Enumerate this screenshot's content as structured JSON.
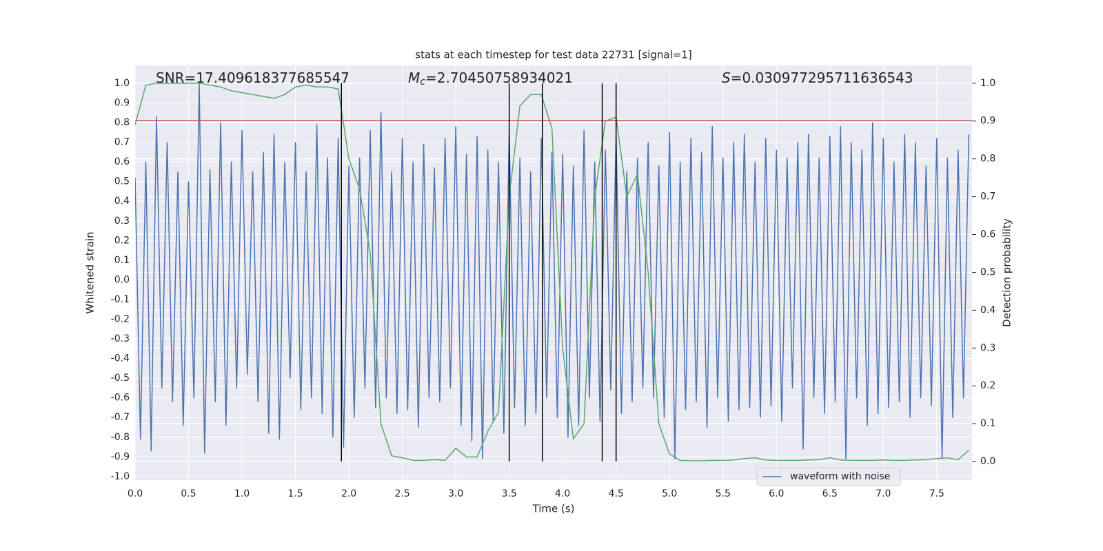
{
  "chart_data": {
    "type": "line",
    "title": "stats at each timestep for test data 22731 [signal=1]",
    "xlabel": "Time (s)",
    "ylabel": "Whitened strain",
    "y2label": "Detection probability",
    "annotations": [
      {
        "text": "SNR=17.409618377685547"
      },
      {
        "italic": "M",
        "sub": "c",
        "text": "=2.70450758934021"
      },
      {
        "italic": "S",
        "text": "=0.030977295711636543"
      }
    ],
    "xlim": [
      0,
      7.83
    ],
    "ylim": [
      -1.018,
      1.091
    ],
    "y2lim": [
      -0.049,
      1.047
    ],
    "xticks": [
      {
        "value": 0,
        "label": "0.0"
      },
      0.5,
      {
        "value": 1,
        "label": "1.0"
      },
      1.5,
      {
        "value": 2,
        "label": "2.0"
      },
      2.5,
      {
        "value": 3,
        "label": "3.0"
      },
      3.5,
      {
        "value": 4,
        "label": "4.0"
      },
      4.5,
      {
        "value": 5,
        "label": "5.0"
      },
      5.5,
      {
        "value": 6,
        "label": "6.0"
      },
      6.5,
      {
        "value": 7,
        "label": "7.0"
      },
      7.5
    ],
    "yticks": [
      {
        "value": -1,
        "label": "-1.0"
      },
      -0.9,
      -0.8,
      -0.7,
      -0.6,
      -0.5,
      -0.4,
      -0.3,
      -0.2,
      -0.1,
      {
        "value": 0,
        "label": "0.0"
      },
      0.1,
      0.2,
      0.3,
      0.4,
      0.5,
      0.6,
      0.7,
      0.8,
      0.9,
      {
        "value": 1,
        "label": "1.0"
      }
    ],
    "y2ticks": [
      {
        "value": 0,
        "label": "0.0"
      },
      0.1,
      0.2,
      0.3,
      0.4,
      0.5,
      0.6,
      0.7,
      0.8,
      0.9,
      {
        "value": 1,
        "label": "1.0"
      }
    ],
    "grid": true,
    "hlines": [
      0.81
    ],
    "hline_color": "#c44e52",
    "vlines": [
      1.93,
      3.5,
      3.81,
      4.37,
      4.5
    ],
    "vline_color": "#000000",
    "legend": "lower right",
    "series": [
      {
        "name": "waveform with noise",
        "color": "#4c72b0",
        "x": [
          0,
          0.05,
          0.1,
          0.15,
          0.2,
          0.25,
          0.3,
          0.35,
          0.4,
          0.45,
          0.5,
          0.55,
          0.6,
          0.65,
          0.7,
          0.75,
          0.8,
          0.85,
          0.9,
          0.95,
          1,
          1.05,
          1.1,
          1.15,
          1.2,
          1.25,
          1.3,
          1.35,
          1.4,
          1.45,
          1.5,
          1.55,
          1.6,
          1.65,
          1.7,
          1.75,
          1.8,
          1.85,
          1.9,
          1.95,
          2,
          2.05,
          2.1,
          2.15,
          2.2,
          2.25,
          2.3,
          2.35,
          2.4,
          2.45,
          2.5,
          2.55,
          2.6,
          2.65,
          2.7,
          2.75,
          2.8,
          2.85,
          2.9,
          2.95,
          3,
          3.05,
          3.1,
          3.15,
          3.2,
          3.25,
          3.3,
          3.35,
          3.4,
          3.45,
          3.5,
          3.55,
          3.6,
          3.65,
          3.7,
          3.75,
          3.8,
          3.85,
          3.9,
          3.95,
          4,
          4.05,
          4.1,
          4.15,
          4.2,
          4.25,
          4.3,
          4.35,
          4.4,
          4.45,
          4.5,
          4.55,
          4.6,
          4.65,
          4.7,
          4.75,
          4.8,
          4.85,
          4.9,
          4.95,
          5,
          5.05,
          5.1,
          5.15,
          5.2,
          5.25,
          5.3,
          5.35,
          5.4,
          5.45,
          5.5,
          5.55,
          5.6,
          5.65,
          5.7,
          5.75,
          5.8,
          5.85,
          5.9,
          5.95,
          6,
          6.05,
          6.1,
          6.15,
          6.2,
          6.25,
          6.3,
          6.35,
          6.4,
          6.45,
          6.5,
          6.55,
          6.6,
          6.65,
          6.7,
          6.75,
          6.8,
          6.85,
          6.9,
          6.95,
          7,
          7.05,
          7.1,
          7.15,
          7.2,
          7.25,
          7.3,
          7.35,
          7.4,
          7.45,
          7.5,
          7.55,
          7.6,
          7.65,
          7.7,
          7.75,
          7.8
        ],
        "values": [
          0.52,
          -0.81,
          0.6,
          -0.87,
          0.83,
          -0.55,
          0.7,
          -0.62,
          0.55,
          -0.74,
          0.5,
          -0.6,
          1.0,
          -0.88,
          0.56,
          -0.62,
          0.8,
          -0.74,
          0.6,
          -0.55,
          0.76,
          -0.48,
          0.55,
          -0.62,
          0.65,
          -0.78,
          0.74,
          -0.81,
          0.6,
          -0.5,
          0.7,
          -0.66,
          0.55,
          -0.6,
          0.79,
          -0.68,
          0.62,
          -0.8,
          0.72,
          -0.85,
          0.58,
          -0.7,
          0.62,
          -0.55,
          0.76,
          -0.65,
          0.85,
          -0.6,
          0.55,
          -0.68,
          0.72,
          -0.66,
          0.6,
          -0.75,
          0.69,
          -0.6,
          0.57,
          -0.62,
          0.72,
          -0.55,
          0.78,
          -0.74,
          0.64,
          -0.82,
          0.73,
          -0.91,
          0.66,
          -0.72,
          0.6,
          -0.78,
          0.75,
          -0.65,
          0.62,
          -0.74,
          0.55,
          -0.68,
          0.72,
          -0.6,
          0.65,
          -0.7,
          0.64,
          -0.8,
          0.58,
          -0.74,
          0.76,
          -0.6,
          0.6,
          -0.72,
          0.66,
          -0.56,
          0.73,
          -0.68,
          0.55,
          -0.62,
          0.62,
          -0.55,
          0.7,
          -0.6,
          0.58,
          -0.7,
          0.75,
          -0.91,
          0.6,
          -0.66,
          0.72,
          -0.62,
          0.65,
          -0.75,
          0.78,
          -0.6,
          0.62,
          -0.72,
          0.7,
          -0.66,
          0.74,
          -0.65,
          0.6,
          -0.7,
          0.72,
          -0.64,
          0.66,
          -0.72,
          0.62,
          -0.55,
          0.7,
          -0.86,
          0.74,
          -0.6,
          0.62,
          -0.68,
          0.73,
          -0.62,
          0.78,
          -0.91,
          0.7,
          -0.6,
          0.66,
          -0.74,
          0.8,
          -0.68,
          0.72,
          -0.65,
          0.6,
          -0.62,
          0.74,
          -0.7,
          0.7,
          -0.6,
          0.58,
          -0.64,
          0.72,
          -0.91,
          0.62,
          -0.7,
          0.66,
          -0.6,
          0.74
        ]
      },
      {
        "color": "#55a868",
        "axis": "y2",
        "x": [
          0,
          0.1,
          0.2,
          0.3,
          0.4,
          0.5,
          0.6,
          0.7,
          0.8,
          0.9,
          1,
          1.1,
          1.2,
          1.3,
          1.4,
          1.5,
          1.6,
          1.7,
          1.8,
          1.9,
          2,
          2.1,
          2.2,
          2.3,
          2.4,
          2.5,
          2.6,
          2.7,
          2.8,
          2.9,
          3,
          3.1,
          3.2,
          3.3,
          3.4,
          3.5,
          3.6,
          3.7,
          3.8,
          3.9,
          4,
          4.1,
          4.2,
          4.3,
          4.4,
          4.5,
          4.6,
          4.7,
          4.8,
          4.9,
          5,
          5.1,
          5.2,
          5.3,
          5.4,
          5.5,
          5.6,
          5.7,
          5.8,
          5.9,
          6,
          6.1,
          6.2,
          6.3,
          6.4,
          6.5,
          6.6,
          6.7,
          6.8,
          6.9,
          7,
          7.1,
          7.2,
          7.3,
          7.4,
          7.5,
          7.6,
          7.7,
          7.8
        ],
        "values": [
          0.89,
          0.995,
          1.0,
          1.0,
          1.0,
          1.0,
          1.0,
          0.995,
          0.99,
          0.98,
          0.975,
          0.97,
          0.965,
          0.96,
          0.97,
          0.99,
          0.995,
          0.99,
          0.99,
          0.985,
          0.8,
          0.72,
          0.55,
          0.1,
          0.015,
          0.01,
          0.003,
          0.003,
          0.005,
          0.003,
          0.035,
          0.012,
          0.012,
          0.08,
          0.13,
          0.7,
          0.94,
          0.97,
          0.97,
          0.88,
          0.3,
          0.06,
          0.1,
          0.7,
          0.9,
          0.91,
          0.7,
          0.76,
          0.5,
          0.1,
          0.02,
          0.003,
          0.002,
          0.002,
          0.003,
          0.003,
          0.004,
          0.008,
          0.01,
          0.004,
          0.003,
          0.003,
          0.003,
          0.004,
          0.005,
          0.01,
          0.004,
          0.003,
          0.003,
          0.003,
          0.004,
          0.003,
          0.003,
          0.004,
          0.005,
          0.008,
          0.01,
          0.005,
          0.03
        ]
      }
    ]
  }
}
